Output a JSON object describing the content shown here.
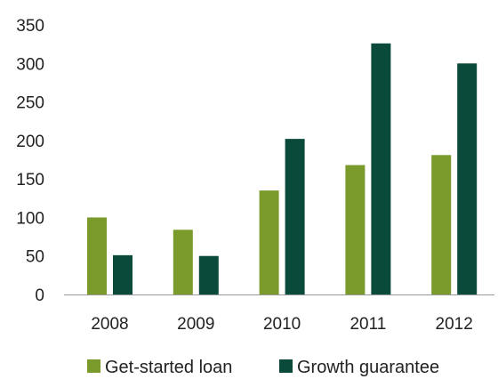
{
  "chart_data": {
    "type": "bar",
    "categories": [
      "2008",
      "2009",
      "2010",
      "2011",
      "2012"
    ],
    "series": [
      {
        "name": "Get-started loan",
        "values": [
          100,
          84,
          135,
          168,
          181
        ]
      },
      {
        "name": "Growth guarantee",
        "values": [
          51,
          50,
          202,
          326,
          300
        ]
      }
    ],
    "ylim": [
      0,
      350
    ],
    "yticks": [
      0,
      50,
      100,
      150,
      200,
      250,
      300,
      350
    ],
    "grid": false,
    "legend": "bottom"
  },
  "colors": {
    "series": [
      "#7a9a2c",
      "#0a4a3a"
    ],
    "axis": "#999999"
  }
}
